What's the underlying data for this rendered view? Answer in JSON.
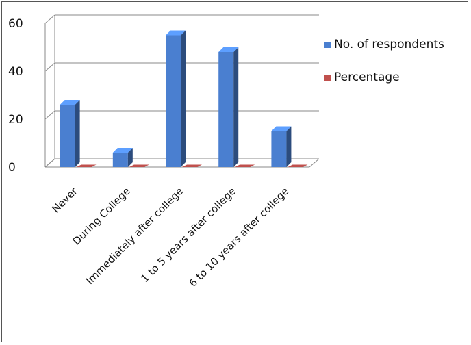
{
  "chart_data": {
    "type": "bar",
    "categories": [
      "Never",
      "During College",
      "Immediately after college",
      "1 to 5 years after college",
      "6 to 10 years after college"
    ],
    "series": [
      {
        "name": "No. of respondents",
        "values": [
          26,
          6,
          55,
          48,
          15
        ],
        "color": "#4a7fd0"
      },
      {
        "name": "Percentage",
        "values": [
          0,
          0,
          0,
          0,
          0
        ],
        "color": "#c0504d"
      }
    ],
    "ylim": [
      0,
      60
    ],
    "yticks": [
      0,
      20,
      40,
      60
    ],
    "grid": true,
    "legend": "right",
    "style": "3d-column"
  }
}
